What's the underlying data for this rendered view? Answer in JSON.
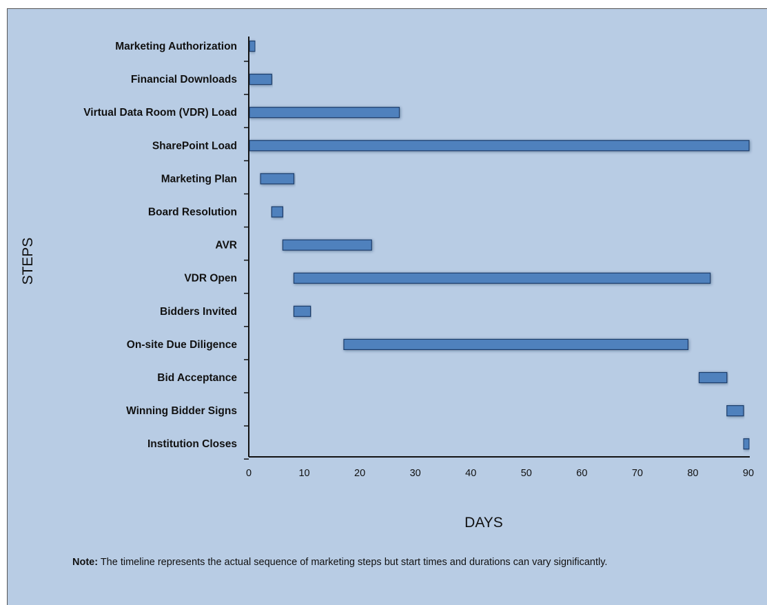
{
  "chart_data": {
    "type": "bar",
    "orientation": "horizontal",
    "chart_style": "gantt",
    "xlabel": "DAYS",
    "ylabel": "STEPS",
    "xlim": [
      0,
      90
    ],
    "xticks": [
      0,
      10,
      20,
      30,
      40,
      50,
      60,
      70,
      80,
      90
    ],
    "grid": false,
    "bar_color": "#4f81bd",
    "bar_edge_color": "#1f3d6b",
    "background_color": "#b8cce4",
    "tasks": [
      {
        "name": "Marketing Authorization",
        "start": 0,
        "end": 1
      },
      {
        "name": "Financial Downloads",
        "start": 0,
        "end": 4
      },
      {
        "name": "Virtual Data Room (VDR)  Load",
        "start": 0,
        "end": 27
      },
      {
        "name": "SharePoint Load",
        "start": 0,
        "end": 90
      },
      {
        "name": "Marketing Plan",
        "start": 2,
        "end": 8
      },
      {
        "name": "Board Resolution",
        "start": 4,
        "end": 6
      },
      {
        "name": "AVR",
        "start": 6,
        "end": 22
      },
      {
        "name": "VDR Open",
        "start": 8,
        "end": 83
      },
      {
        "name": "Bidders Invited",
        "start": 8,
        "end": 11
      },
      {
        "name": "On-site Due Diligence",
        "start": 17,
        "end": 79
      },
      {
        "name": "Bid Acceptance",
        "start": 81,
        "end": 86
      },
      {
        "name": "Winning Bidder Signs",
        "start": 86,
        "end": 89
      },
      {
        "name": "Institution Closes",
        "start": 89,
        "end": 90
      }
    ]
  },
  "note": {
    "label": "Note:",
    "text": " The timeline represents the actual sequence of marketing steps but start times and durations can vary significantly."
  }
}
